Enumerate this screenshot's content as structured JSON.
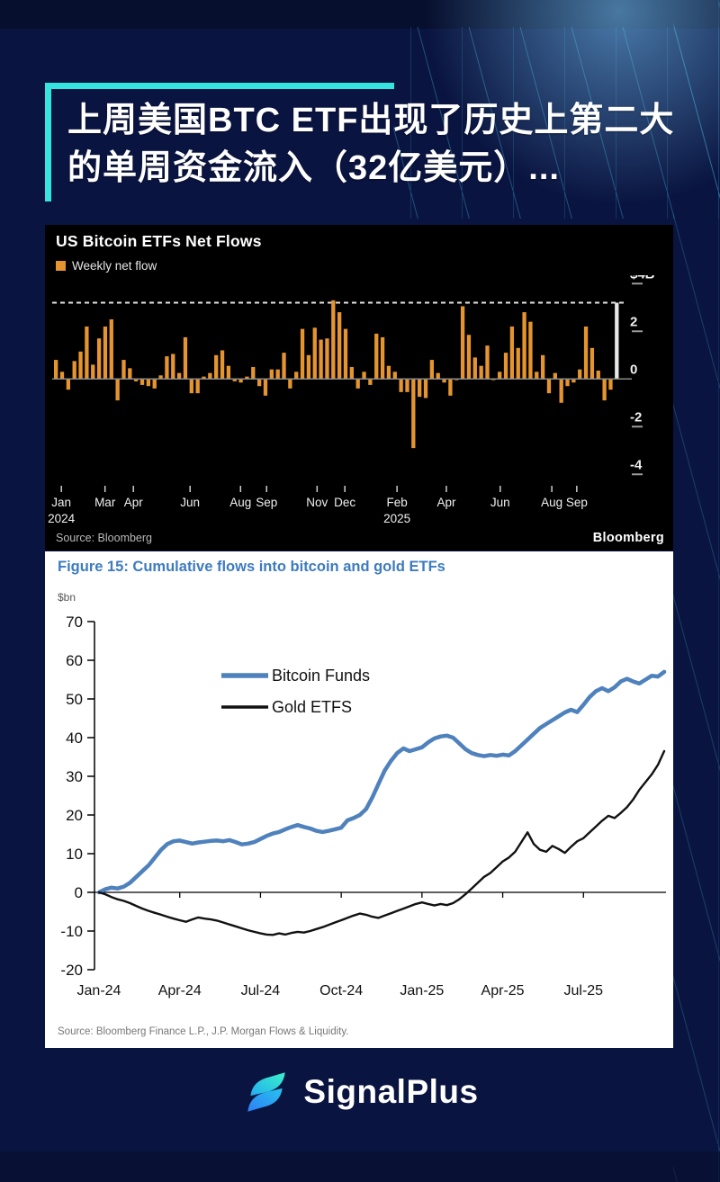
{
  "page": {
    "bg": "#0A1440",
    "accent": "#35E3DF"
  },
  "headline": {
    "line1": "上周美国BTC ETF出现了历史上第二大",
    "line2": "的单周资金流入（32亿美元）..."
  },
  "bloomberg_chart": {
    "title": "US Bitcoin ETFs Net Flows",
    "legend_label": "Weekly net flow",
    "source": "Source: Bloomberg",
    "brand": "Bloomberg"
  },
  "figure15_chart": {
    "title": "Figure 15: Cumulative flows into bitcoin and gold ETFs",
    "unit": "$bn",
    "source": "Source: Bloomberg Finance L.P., J.P. Morgan Flows & Liquidity."
  },
  "footer": {
    "brand": "SignalPlus"
  },
  "chart_data": [
    {
      "type": "bar",
      "title": "US Bitcoin ETFs Net Flows",
      "legend": [
        "Weekly net flow"
      ],
      "unit": "$B",
      "ylim": [
        -4.45,
        4.35
      ],
      "grid": false,
      "bar_color": "#E5952F",
      "highlight_color": "#E8E8E8",
      "highlight_last": true,
      "reference_line": 3.2,
      "y_ticks": [
        {
          "label": "$4B",
          "v": 4,
          "tick": true
        },
        {
          "label": "2",
          "v": 2,
          "tick": true
        },
        {
          "label": "0",
          "v": 0,
          "tick": false
        },
        {
          "label": "-2",
          "v": -2,
          "tick": true
        },
        {
          "label": "-4",
          "v": -4,
          "tick": true
        }
      ],
      "x_ticks": [
        {
          "label": "Jan",
          "year": "2024",
          "pos": 0.013
        },
        {
          "label": "Mar",
          "pos": 0.09
        },
        {
          "label": "Apr",
          "pos": 0.14
        },
        {
          "label": "Jun",
          "pos": 0.24
        },
        {
          "label": "Aug",
          "pos": 0.329
        },
        {
          "label": "Sep",
          "pos": 0.375
        },
        {
          "label": "Nov",
          "pos": 0.464
        },
        {
          "label": "Dec",
          "pos": 0.513
        },
        {
          "label": "Feb",
          "year": "2025",
          "pos": 0.605
        },
        {
          "label": "Apr",
          "pos": 0.692
        },
        {
          "label": "Jun",
          "pos": 0.787
        },
        {
          "label": "Aug",
          "pos": 0.878
        },
        {
          "label": "Sep",
          "pos": 0.922
        }
      ],
      "values": [
        0.8,
        0.3,
        -0.45,
        0.75,
        1.15,
        2.2,
        0.6,
        1.7,
        2.2,
        2.5,
        -0.9,
        0.8,
        0.45,
        -0.1,
        -0.25,
        -0.3,
        -0.4,
        0.15,
        0.95,
        1.05,
        0.25,
        1.75,
        -0.6,
        -0.6,
        0.1,
        0.25,
        1.0,
        1.2,
        0.55,
        -0.1,
        -0.15,
        0.1,
        0.5,
        -0.3,
        -0.7,
        0.4,
        0.4,
        1.1,
        -0.4,
        0.3,
        2.1,
        1.0,
        2.15,
        1.65,
        1.7,
        3.3,
        2.8,
        2.1,
        0.5,
        -0.4,
        0.3,
        -0.25,
        1.9,
        1.75,
        0.55,
        0.3,
        -0.55,
        -0.55,
        -2.9,
        -0.75,
        -0.8,
        0.8,
        0.25,
        -0.15,
        -0.7,
        -0.05,
        3.05,
        1.85,
        0.9,
        0.55,
        1.4,
        -0.05,
        0.3,
        1.1,
        2.2,
        1.3,
        2.8,
        2.4,
        0.3,
        1.0,
        -0.6,
        0.25,
        -1.0,
        -0.3,
        -0.15,
        0.4,
        2.2,
        1.3,
        0.35,
        -0.9,
        -0.45,
        3.2
      ]
    },
    {
      "type": "line",
      "title": "Figure 15: Cumulative flows into bitcoin and gold ETFs",
      "ylabel": "$bn",
      "ylim": [
        -20,
        70
      ],
      "grid": false,
      "legend_position": "upper-left-inside",
      "y_ticks": [
        70,
        60,
        50,
        40,
        30,
        20,
        10,
        0,
        -10,
        -20
      ],
      "x_labels": [
        "Jan-24",
        "Apr-24",
        "Jul-24",
        "Oct-24",
        "Jan-25",
        "Apr-25",
        "Jul-25"
      ],
      "x_label_weeks": [
        0,
        13,
        26,
        39,
        52,
        65,
        78
      ],
      "series": [
        {
          "name": "Bitcoin Funds",
          "color": "#4F81BD",
          "width": 4.5,
          "values": [
            0,
            0.8,
            1.2,
            1.0,
            1.5,
            2.5,
            4.0,
            5.5,
            7.0,
            9.0,
            11.0,
            12.5,
            13.2,
            13.4,
            13.0,
            12.6,
            12.9,
            13.1,
            13.3,
            13.4,
            13.2,
            13.5,
            13.0,
            12.4,
            12.6,
            13.0,
            13.8,
            14.6,
            15.2,
            15.6,
            16.3,
            16.9,
            17.4,
            16.9,
            16.5,
            15.9,
            15.6,
            15.9,
            16.3,
            16.7,
            18.6,
            19.2,
            20.0,
            21.5,
            24.5,
            28.0,
            31.5,
            34.0,
            36.0,
            37.2,
            36.5,
            37.0,
            37.5,
            38.8,
            39.8,
            40.3,
            40.5,
            40.0,
            38.5,
            37.0,
            36.0,
            35.5,
            35.2,
            35.5,
            35.3,
            35.6,
            35.4,
            36.5,
            38.0,
            39.5,
            41.0,
            42.5,
            43.5,
            44.5,
            45.5,
            46.5,
            47.2,
            46.6,
            48.5,
            50.5,
            52.0,
            52.8,
            52.0,
            53.0,
            54.5,
            55.2,
            54.5,
            54.0,
            55.0,
            56.0,
            55.8,
            57.0
          ]
        },
        {
          "name": "Gold ETFS",
          "color": "#111111",
          "width": 2.4,
          "values": [
            0,
            -0.5,
            -1.2,
            -1.8,
            -2.2,
            -2.8,
            -3.5,
            -4.2,
            -4.8,
            -5.3,
            -5.8,
            -6.3,
            -6.8,
            -7.2,
            -7.6,
            -7.0,
            -6.5,
            -6.8,
            -7.0,
            -7.3,
            -7.8,
            -8.3,
            -8.8,
            -9.3,
            -9.8,
            -10.2,
            -10.6,
            -10.9,
            -11.0,
            -10.6,
            -10.9,
            -10.5,
            -10.2,
            -10.4,
            -10.0,
            -9.5,
            -9.0,
            -8.4,
            -7.8,
            -7.2,
            -6.6,
            -6.0,
            -5.5,
            -5.8,
            -6.3,
            -6.6,
            -6.0,
            -5.4,
            -4.8,
            -4.2,
            -3.6,
            -3.0,
            -2.6,
            -3.0,
            -3.4,
            -3.0,
            -3.3,
            -2.8,
            -1.8,
            -0.5,
            1.0,
            2.5,
            4.0,
            5.0,
            6.5,
            8.0,
            9.0,
            10.5,
            13.0,
            15.5,
            12.5,
            11.0,
            10.5,
            12.0,
            11.2,
            10.2,
            11.8,
            13.2,
            14.0,
            15.5,
            17.0,
            18.5,
            19.8,
            19.2,
            20.5,
            22.0,
            24.0,
            26.5,
            28.5,
            30.5,
            33.0,
            36.5
          ]
        }
      ]
    }
  ]
}
